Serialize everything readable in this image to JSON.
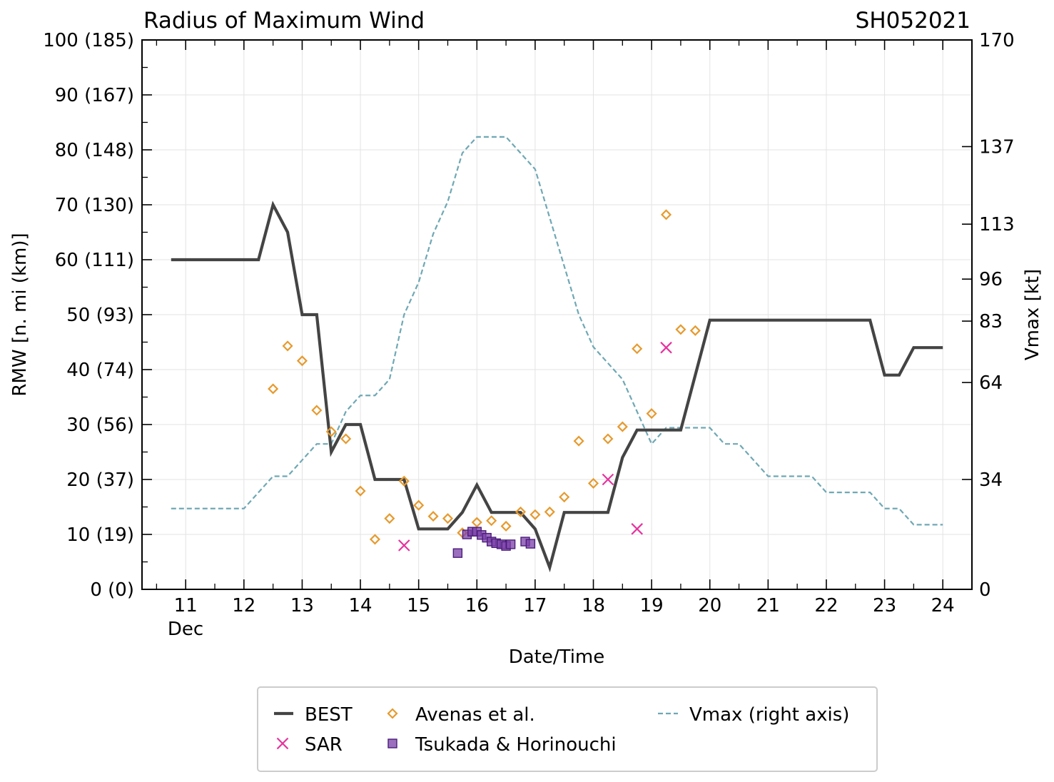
{
  "chart_data": {
    "type": "line",
    "title": "Radius of Maximum Wind",
    "storm_id": "SH052021",
    "xlabel": "Date/Time",
    "ylabel_left": "RMW [n. mi (km)]",
    "ylabel_right": "Vmax [kt]",
    "x_unit": "day of December 2021",
    "xlim": [
      10.25,
      24.5
    ],
    "ylim_left": [
      0,
      100
    ],
    "ylim_right": [
      0,
      170
    ],
    "x_ticks": [
      11,
      12,
      13,
      14,
      15,
      16,
      17,
      18,
      19,
      20,
      21,
      22,
      23,
      24
    ],
    "x_tick_labels": [
      "11",
      "12",
      "13",
      "14",
      "15",
      "16",
      "17",
      "18",
      "19",
      "20",
      "21",
      "22",
      "23",
      "24"
    ],
    "x_sub_label": "Dec",
    "y_left_ticks": [
      0,
      10,
      20,
      30,
      40,
      50,
      60,
      70,
      80,
      90,
      100
    ],
    "y_left_tick_labels": [
      "0 (0)",
      "10 (19)",
      "20 (37)",
      "30 (56)",
      "40 (74)",
      "50 (93)",
      "60 (111)",
      "70 (130)",
      "80 (148)",
      "90 (167)",
      "100 (185)"
    ],
    "y_right_ticks": [
      0,
      34,
      64,
      83,
      96,
      113,
      137,
      170
    ],
    "y_right_tick_labels": [
      "0",
      "34",
      "64",
      "83",
      "96",
      "113",
      "137",
      "170"
    ],
    "grid": true,
    "legend_position": "bottom",
    "series": [
      {
        "name": "BEST",
        "kind": "line",
        "color": "#444444",
        "x": [
          10.75,
          11,
          11.25,
          11.5,
          11.75,
          12,
          12.25,
          12.5,
          12.75,
          13,
          13.25,
          13.5,
          13.75,
          14,
          14.25,
          14.5,
          14.75,
          15,
          15.25,
          15.5,
          15.75,
          16,
          16.25,
          16.5,
          16.75,
          17,
          17.25,
          17.5,
          17.75,
          18,
          18.25,
          18.5,
          18.75,
          19,
          19.25,
          19.5,
          19.75,
          20,
          20.25,
          20.5,
          20.75,
          21,
          21.25,
          21.5,
          21.75,
          22,
          22.25,
          22.5,
          22.75,
          23,
          23.25,
          23.5,
          23.75,
          24
        ],
        "y": [
          60,
          60,
          60,
          60,
          60,
          60,
          60,
          70,
          65,
          50,
          50,
          25,
          30,
          30,
          20,
          20,
          20,
          11,
          11,
          11,
          14,
          19,
          14,
          14,
          14,
          11,
          4,
          14,
          14,
          14,
          14,
          24,
          29,
          29,
          29,
          29,
          39,
          49,
          49,
          49,
          49,
          49,
          49,
          49,
          49,
          49,
          49,
          49,
          49,
          39,
          39,
          44,
          44,
          44
        ]
      },
      {
        "name": "SAR",
        "kind": "x-marker",
        "color": "#e6339e",
        "x": [
          14.75,
          18.25,
          18.75,
          19.25
        ],
        "y": [
          8,
          20,
          11,
          44
        ]
      },
      {
        "name": "Avenas et al.",
        "kind": "diamond-marker",
        "color": "#e69a2e",
        "x": [
          12.5,
          12.75,
          13,
          13.25,
          13.5,
          13.75,
          14,
          14.25,
          14.5,
          14.75,
          15,
          15.25,
          15.5,
          15.75,
          16,
          16.25,
          16.5,
          16.75,
          17,
          17.25,
          17.5,
          17.75,
          18,
          18.25,
          18.5,
          18.75,
          19,
          19.25,
          19.5,
          19.75
        ],
        "y": [
          36.5,
          44.3,
          41.6,
          32.6,
          28.7,
          27.4,
          17.9,
          9.1,
          12.9,
          19.7,
          15.3,
          13.3,
          12.9,
          10.3,
          12.2,
          12.5,
          11.5,
          14.1,
          13.6,
          14.1,
          16.8,
          27.0,
          19.3,
          27.4,
          29.6,
          43.8,
          32.0,
          68.2,
          47.3,
          47.1
        ]
      },
      {
        "name": "Tsukada & Horinouchi",
        "kind": "square-marker",
        "color": "#7b3fa8",
        "x": [
          15.67,
          15.83,
          15.92,
          16.0,
          16.08,
          16.17,
          16.25,
          16.33,
          16.42,
          16.5,
          16.58,
          16.83,
          16.92
        ],
        "y": [
          6.6,
          10.0,
          10.5,
          10.5,
          9.9,
          9.4,
          8.7,
          8.4,
          8.2,
          7.9,
          8.2,
          8.7,
          8.3
        ]
      },
      {
        "name": "Vmax (right axis)",
        "kind": "dashed-line",
        "axis": "right",
        "color": "#6fa8b4",
        "x": [
          10.75,
          11,
          11.25,
          11.5,
          11.75,
          12,
          12.25,
          12.5,
          12.75,
          13,
          13.25,
          13.5,
          13.75,
          14,
          14.25,
          14.5,
          14.75,
          15,
          15.25,
          15.5,
          15.75,
          16,
          16.25,
          16.5,
          16.75,
          17,
          17.25,
          17.5,
          17.75,
          18,
          18.25,
          18.5,
          18.75,
          19,
          19.25,
          19.5,
          19.75,
          20,
          20.25,
          20.5,
          20.75,
          21,
          21.25,
          21.5,
          21.75,
          22,
          22.25,
          22.5,
          22.75,
          23,
          23.25,
          23.5,
          23.75,
          24
        ],
        "y": [
          25,
          25,
          25,
          25,
          25,
          25,
          30,
          35,
          35,
          40,
          45,
          45,
          55,
          60,
          60,
          65,
          85,
          95,
          110,
          120,
          135,
          140,
          140,
          140,
          135,
          130,
          115,
          100,
          85,
          75,
          70,
          65,
          55,
          45,
          50,
          50,
          50,
          50,
          45,
          45,
          40,
          35,
          35,
          35,
          35,
          30,
          30,
          30,
          30,
          25,
          25,
          20,
          20,
          20
        ]
      }
    ]
  }
}
